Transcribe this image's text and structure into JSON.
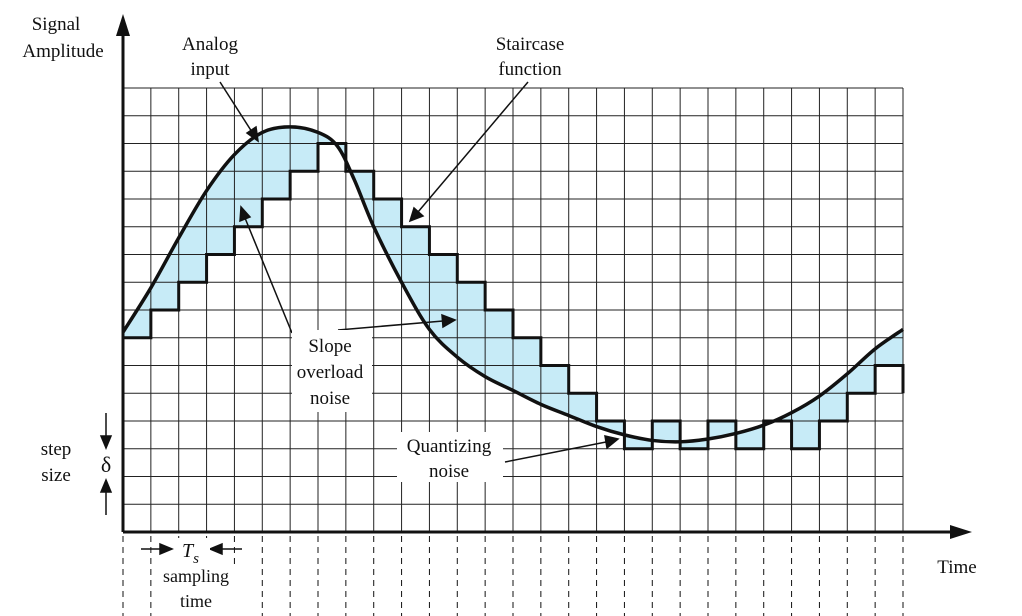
{
  "axes": {
    "y_label_line1": "Signal",
    "y_label_line2": "Amplitude",
    "x_label": "Time"
  },
  "labels": {
    "analog_line1": "Analog",
    "analog_line2": "input",
    "staircase_line1": "Staircase",
    "staircase_line2": "function",
    "slope_line1": "Slope",
    "slope_line2": "overload",
    "slope_line3": "noise",
    "quant_line1": "Quantizing",
    "quant_line2": "noise",
    "step_line1": "step",
    "step_line2": "size",
    "delta": "δ",
    "ts_main": "T",
    "ts_sub": "s",
    "sampling_line1": "sampling",
    "sampling_line2": "time"
  },
  "grid": {
    "columns": 28,
    "rows": 16
  },
  "staircase_levels": [
    7,
    8,
    9,
    10,
    11,
    12,
    13,
    14,
    13,
    12,
    11,
    10,
    9,
    8,
    7,
    6,
    5,
    4,
    3,
    4,
    3,
    4,
    3,
    4,
    3,
    4,
    5,
    6,
    5
  ],
  "analog_curve": [
    [
      0,
      7.2
    ],
    [
      1,
      8.8
    ],
    [
      2,
      10.6
    ],
    [
      3,
      12.3
    ],
    [
      4,
      13.6
    ],
    [
      5,
      14.4
    ],
    [
      6,
      14.6
    ],
    [
      7,
      14.4
    ],
    [
      7.7,
      13.9
    ],
    [
      8.3,
      12.7
    ],
    [
      9,
      11.0
    ],
    [
      10,
      9.0
    ],
    [
      11,
      7.3
    ],
    [
      12,
      6.3
    ],
    [
      13,
      5.6
    ],
    [
      14,
      5.1
    ],
    [
      15,
      4.6
    ],
    [
      16,
      4.2
    ],
    [
      17,
      3.8
    ],
    [
      18,
      3.5
    ],
    [
      19,
      3.3
    ],
    [
      20,
      3.25
    ],
    [
      21,
      3.35
    ],
    [
      22,
      3.55
    ],
    [
      23,
      3.85
    ],
    [
      24,
      4.3
    ],
    [
      25,
      4.9
    ],
    [
      26,
      5.7
    ],
    [
      27,
      6.6
    ],
    [
      28,
      7.3
    ]
  ],
  "colors": {
    "noise_fill": "#c7ebf7",
    "line": "#111111",
    "grid": "#222222"
  }
}
